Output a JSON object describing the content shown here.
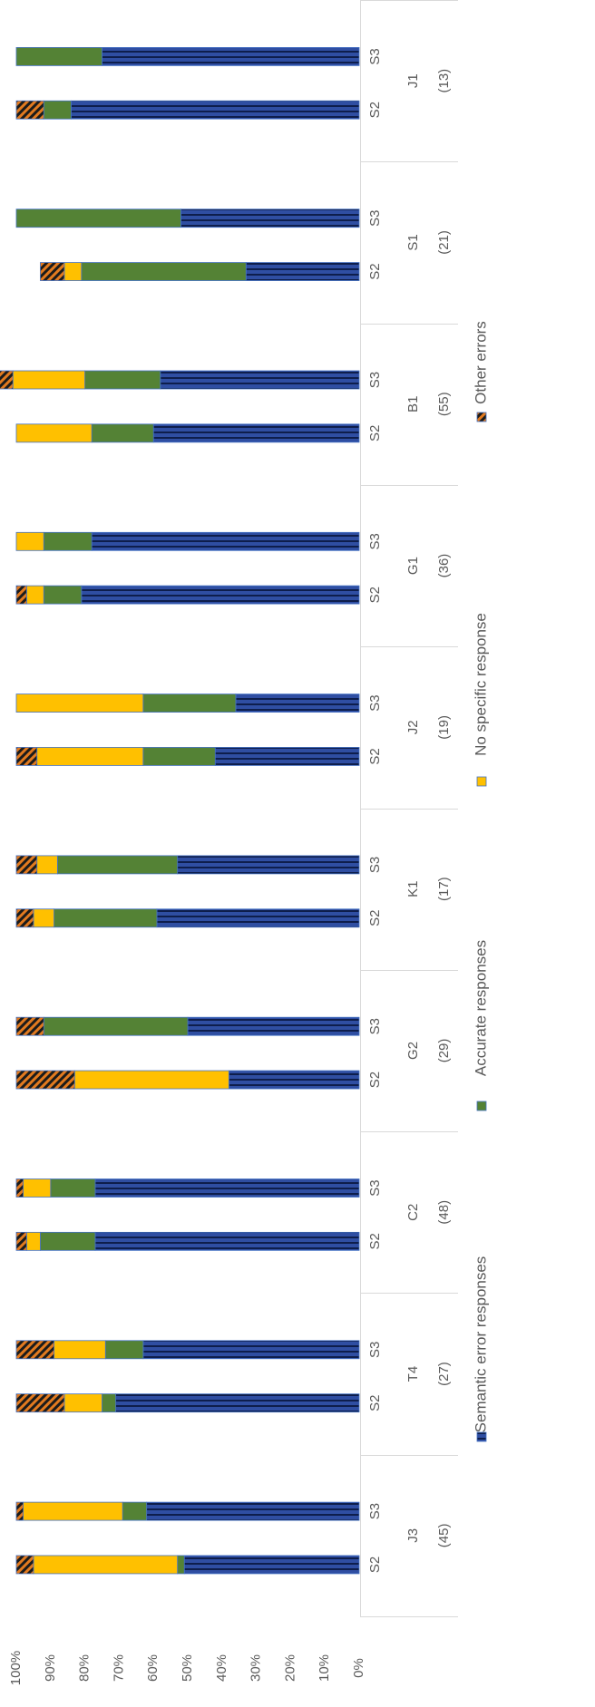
{
  "chart_data": {
    "type": "bar",
    "stacked": true,
    "orientation": "horizontal",
    "value_axis_ticks": [
      "0%",
      "10%",
      "20%",
      "30%",
      "40%",
      "50%",
      "60%",
      "70%",
      "80%",
      "90%",
      "100%"
    ],
    "ylim": [
      0,
      100
    ],
    "groups": [
      {
        "name": "J3",
        "count": "(45)"
      },
      {
        "name": "T4",
        "count": "(27)"
      },
      {
        "name": "C2",
        "count": "(48)"
      },
      {
        "name": "G2",
        "count": "(29)"
      },
      {
        "name": "K1",
        "count": "(17)"
      },
      {
        "name": "J2",
        "count": "(19)"
      },
      {
        "name": "G1",
        "count": "(36)"
      },
      {
        "name": "B1",
        "count": "(55)"
      },
      {
        "name": "S1",
        "count": "(21)"
      },
      {
        "name": "J1",
        "count": "(13)"
      }
    ],
    "categories": [
      "S2",
      "S3",
      "S2",
      "S3",
      "S2",
      "S3",
      "S2",
      "S3",
      "S2",
      "S3",
      "S2",
      "S3",
      "S2",
      "S3",
      "S2",
      "S3",
      "S2",
      "S3",
      "S2",
      "S3"
    ],
    "series": [
      {
        "name": "Semantic error responses",
        "color": "#2F4EA2",
        "values": [
          51,
          62,
          71,
          63,
          77,
          77,
          38,
          50,
          59,
          53,
          42,
          36,
          81,
          78,
          60,
          58,
          33,
          52,
          84,
          75
        ]
      },
      {
        "name": "Accurate responses",
        "color": "#548235",
        "values": [
          2,
          7,
          4,
          11,
          16,
          13,
          0,
          42,
          30,
          35,
          21,
          27,
          11,
          14,
          18,
          22,
          48,
          48,
          8,
          25
        ]
      },
      {
        "name": "No specific response",
        "color": "#FFC000",
        "values": [
          42,
          29,
          11,
          15,
          4,
          8,
          45,
          0,
          6,
          6,
          31,
          37,
          5,
          8,
          22,
          21,
          5,
          0,
          0,
          0
        ]
      },
      {
        "name": "Other errors",
        "color": "#C55A11",
        "values": [
          5,
          2,
          14,
          11,
          3,
          2,
          17,
          8,
          5,
          6,
          6,
          0,
          3,
          0,
          0,
          4,
          7,
          0,
          8,
          0
        ]
      }
    ],
    "legend_position": "bottom",
    "grid": false
  }
}
